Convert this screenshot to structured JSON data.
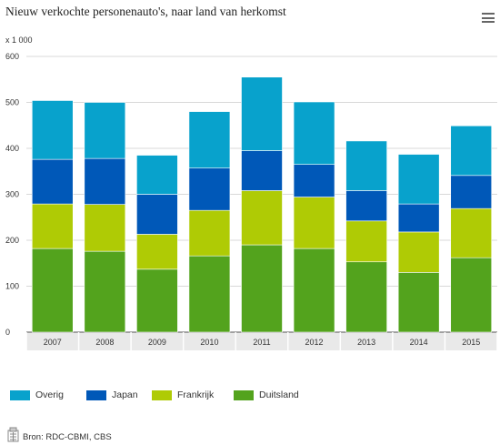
{
  "title": "Nieuw verkochte personenauto's, naar land van herkomst",
  "unit_label": "x 1 000",
  "menu_icon": "hamburger-menu-icon",
  "source": "Bron: RDC-CBMI, CBS",
  "source_icon": "document-table-icon",
  "colors": {
    "Overig": "#08a2cc",
    "Japan": "#0058b8",
    "Frankrijk": "#afcb05",
    "Duitsland": "#53a31d"
  },
  "chart_data": {
    "type": "bar",
    "stacked": true,
    "title": "Nieuw verkochte personenauto's, naar land van herkomst",
    "ylabel": "x 1 000",
    "xlabel": "",
    "ylim": [
      0,
      600
    ],
    "yticks": [
      0,
      100,
      200,
      300,
      400,
      500,
      600
    ],
    "grid": true,
    "legend_position": "bottom",
    "categories": [
      "2007",
      "2008",
      "2009",
      "2010",
      "2011",
      "2012",
      "2013",
      "2014",
      "2015"
    ],
    "series": [
      {
        "name": "Duitsland",
        "values": [
          182,
          176,
          137,
          166,
          190,
          182,
          153,
          130,
          162
        ]
      },
      {
        "name": "Frankrijk",
        "values": [
          97,
          102,
          76,
          99,
          118,
          112,
          89,
          88,
          107
        ]
      },
      {
        "name": "Japan",
        "values": [
          97,
          100,
          87,
          92,
          87,
          71,
          66,
          61,
          72
        ]
      },
      {
        "name": "Overig",
        "values": [
          128,
          122,
          85,
          123,
          160,
          136,
          108,
          108,
          108
        ]
      }
    ]
  }
}
